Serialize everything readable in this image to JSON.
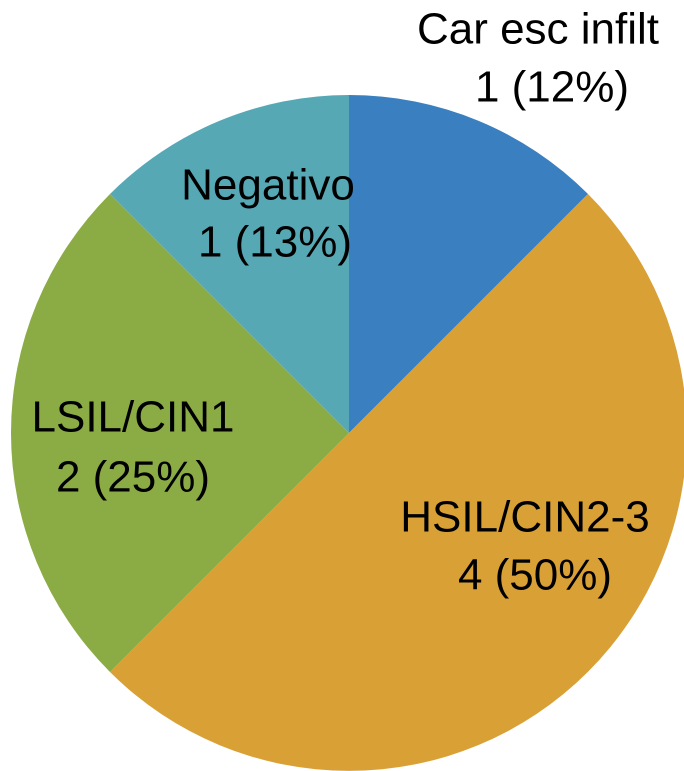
{
  "chart_data": {
    "type": "pie",
    "categories": [
      "Car esc infilt",
      "HSIL/CIN2-3",
      "LSIL/CIN1",
      "Negativo"
    ],
    "values": [
      1,
      4,
      2,
      1
    ],
    "value_labels": [
      "1 (12%)",
      "4 (50%)",
      "2 (25%)",
      "1 (13%)"
    ],
    "colors": [
      "#3a7fbf",
      "#d9a036",
      "#8bab45",
      "#57a8b5"
    ]
  }
}
